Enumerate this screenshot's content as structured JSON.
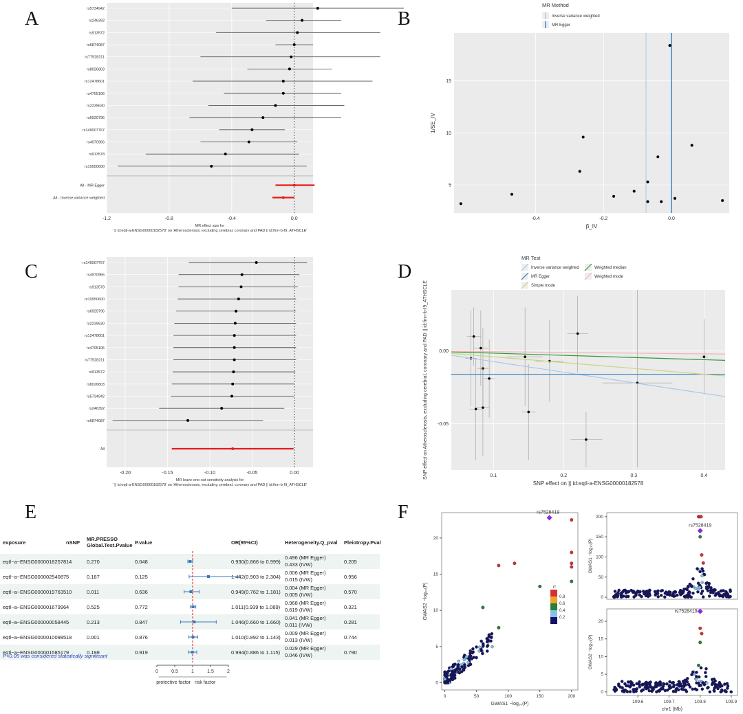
{
  "panels": {
    "a": "A",
    "b": "B",
    "c": "C",
    "d": "D",
    "e": "E",
    "f": "F"
  },
  "colors": {
    "panel_bg": "#ebebeb",
    "grid": "#ffffff",
    "point": "#000000",
    "ci_line": "#9a9a9a",
    "summary": "#e8191a",
    "ivw": "#a8c8e8",
    "egger": "#2f7fc1",
    "wmedian": "#2f9a3a",
    "smode": "#c9d67a",
    "wmode": "#f3b5b5",
    "forest_blue": "#3a78bf",
    "ref_red": "#e8191a",
    "ld_navy": "#141466",
    "ld_lblue": "#87c1e6",
    "ld_green": "#2a7f3a",
    "ld_orange": "#f2a030",
    "ld_red": "#d63030",
    "lead_purple": "#8a2be2"
  },
  "chart_data": [
    {
      "id": "A",
      "type": "forest",
      "xlabel": "MR effect size for\n' || id:eqtl-a-ENSG00000182578' on 'Atherosclerosis, excluding cerebral, coronary and PAD || id:finn-b-I9_ATHSCLE'",
      "xlim": [
        -1.2,
        0.12
      ],
      "xticks": [
        -1.2,
        -0.8,
        -0.4,
        0.0
      ],
      "xticklabels": [
        "-1.2",
        "-0.8",
        "-0.4",
        "0.0"
      ],
      "snps": [
        {
          "label": "rs5734942",
          "est": 0.15,
          "lo": -0.4,
          "hi": 0.7
        },
        {
          "label": "rs246392",
          "est": 0.05,
          "lo": -0.18,
          "hi": 0.3
        },
        {
          "label": "rs913572",
          "est": 0.02,
          "lo": -0.5,
          "hi": 0.55
        },
        {
          "label": "rs6874087",
          "est": 0.0,
          "lo": -0.12,
          "hi": 0.12
        },
        {
          "label": "rs77528211",
          "est": -0.02,
          "lo": -0.6,
          "hi": 0.55
        },
        {
          "label": "rs8026803",
          "est": -0.03,
          "lo": -0.3,
          "hi": 0.24
        },
        {
          "label": "rs12478601",
          "est": -0.07,
          "lo": -0.65,
          "hi": 0.5
        },
        {
          "label": "rs4705106",
          "est": -0.07,
          "lo": -0.45,
          "hi": 0.3
        },
        {
          "label": "rs2239630",
          "est": -0.12,
          "lo": -0.55,
          "hi": 0.32
        },
        {
          "label": "rs6929796",
          "est": -0.2,
          "lo": -0.67,
          "hi": 0.3
        },
        {
          "label": "rs149007767",
          "est": -0.27,
          "lo": -0.48,
          "hi": -0.06
        },
        {
          "label": "rs4970966",
          "est": -0.29,
          "lo": -0.6,
          "hi": 0.02
        },
        {
          "label": "rs913578",
          "est": -0.44,
          "lo": -0.95,
          "hi": 0.03
        },
        {
          "label": "rs10950600",
          "est": -0.53,
          "lo": -1.13,
          "hi": 0.08
        }
      ],
      "summary": [
        {
          "label": "All - MR Egger",
          "est": 0.0,
          "lo": -0.12,
          "hi": 0.13
        },
        {
          "label": "All - Inverse variance weighted",
          "est": -0.07,
          "lo": -0.14,
          "hi": 0.0
        }
      ]
    },
    {
      "id": "B",
      "type": "scatter",
      "legend_title": "MR Method",
      "legend": [
        "Inverse variance weighted",
        "MR Egger"
      ],
      "xlabel": "β_IV",
      "ylabel": "1/SE_IV",
      "xlim": [
        -0.64,
        0.17
      ],
      "ylim": [
        2.3,
        19.6
      ],
      "xticks": [
        -0.4,
        -0.2,
        0.0
      ],
      "xticklabels": [
        "-0.4",
        "-0.2",
        "0.0"
      ],
      "yticks": [
        5,
        10,
        15
      ],
      "yticklabels": [
        "5",
        "10",
        "15"
      ],
      "vlines": {
        "ivw": -0.075,
        "egger": 0.0
      },
      "x": [
        -0.62,
        -0.47,
        -0.26,
        -0.27,
        -0.17,
        -0.11,
        -0.07,
        -0.07,
        -0.04,
        -0.03,
        0.01,
        0.06,
        -0.005,
        0.15
      ],
      "y": [
        3.2,
        4.1,
        9.6,
        6.3,
        3.9,
        4.4,
        5.3,
        3.4,
        7.7,
        3.4,
        3.7,
        8.8,
        18.4,
        3.5
      ]
    },
    {
      "id": "C",
      "type": "forest",
      "xlabel": "MR leave-one-out sensitivity analysis for\n' || id:eqtl-a-ENSG00000182578' on 'Atherosclerosis, excluding cerebral, coronary and PAD || id:finn-b-I9_ATHSCLE'",
      "xlim": [
        -0.222,
        0.022
      ],
      "xticks": [
        -0.2,
        -0.15,
        -0.1,
        -0.05,
        0.0
      ],
      "xticklabels": [
        "-0.20",
        "-0.15",
        "-0.10",
        "-0.05",
        "0.00"
      ],
      "snps": [
        {
          "label": "rs149007767",
          "est": -0.045,
          "lo": -0.125,
          "hi": 0.015
        },
        {
          "label": "rs4970966",
          "est": -0.062,
          "lo": -0.137,
          "hi": 0.006
        },
        {
          "label": "rs913578",
          "est": -0.063,
          "lo": -0.137,
          "hi": 0.004
        },
        {
          "label": "rs10950600",
          "est": -0.066,
          "lo": -0.138,
          "hi": 0.002
        },
        {
          "label": "rs6929796",
          "est": -0.069,
          "lo": -0.14,
          "hi": 0.002
        },
        {
          "label": "rs2239630",
          "est": -0.07,
          "lo": -0.142,
          "hi": 0.002
        },
        {
          "label": "rs12478601",
          "est": -0.071,
          "lo": -0.143,
          "hi": 0.002
        },
        {
          "label": "rs4705106",
          "est": -0.071,
          "lo": -0.143,
          "hi": 0.002
        },
        {
          "label": "rs77528211",
          "est": -0.071,
          "lo": -0.143,
          "hi": 0.002
        },
        {
          "label": "rs913572",
          "est": -0.072,
          "lo": -0.144,
          "hi": 0.001
        },
        {
          "label": "rs8026803",
          "est": -0.073,
          "lo": -0.145,
          "hi": 0.0
        },
        {
          "label": "rs5734942",
          "est": -0.074,
          "lo": -0.146,
          "hi": -0.001
        },
        {
          "label": "rs246392",
          "est": -0.086,
          "lo": -0.16,
          "hi": -0.012
        },
        {
          "label": "rs6874087",
          "est": -0.126,
          "lo": -0.215,
          "hi": -0.037
        }
      ],
      "summary": [
        {
          "label": "All",
          "est": -0.073,
          "lo": -0.145,
          "hi": -0.001
        }
      ]
    },
    {
      "id": "D",
      "type": "scatter",
      "legend_title": "MR Test",
      "legend": [
        "Inverse variance weighted",
        "MR Egger",
        "Simple mode",
        "Weighted median",
        "Weighted mode"
      ],
      "xlabel": "SNP effect on  || id:eqtl-a-ENSG00000182578",
      "ylabel": "SNP effect on Atherosclerosis, excluding cerebral, coronary and PAD || id:finn-b-I9_ATHSCLE",
      "xlim": [
        0.04,
        0.43
      ],
      "ylim": [
        -0.082,
        0.042
      ],
      "xticks": [
        0.1,
        0.2,
        0.3,
        0.4
      ],
      "xticklabels": [
        "0.1",
        "0.2",
        "0.3",
        "0.4"
      ],
      "yticks": [
        -0.05,
        0.0
      ],
      "yticklabels": [
        "-0.05",
        "0.00"
      ],
      "points": [
        {
          "x": 0.072,
          "y": 0.01,
          "xlo": 0.062,
          "xhi": 0.082,
          "ylo": -0.01,
          "yhi": 0.03
        },
        {
          "x": 0.082,
          "y": 0.002,
          "xlo": 0.072,
          "xhi": 0.092,
          "ylo": -0.024,
          "yhi": 0.028
        },
        {
          "x": 0.068,
          "y": -0.005,
          "xlo": 0.06,
          "xhi": 0.076,
          "ylo": -0.038,
          "yhi": 0.028
        },
        {
          "x": 0.085,
          "y": -0.012,
          "xlo": 0.077,
          "xhi": 0.093,
          "ylo": -0.04,
          "yhi": 0.016
        },
        {
          "x": 0.094,
          "y": -0.019,
          "xlo": 0.086,
          "xhi": 0.102,
          "ylo": -0.046,
          "yhi": 0.008
        },
        {
          "x": 0.075,
          "y": -0.04,
          "xlo": 0.066,
          "xhi": 0.084,
          "ylo": -0.075,
          "yhi": -0.005
        },
        {
          "x": 0.085,
          "y": -0.039,
          "xlo": 0.076,
          "xhi": 0.094,
          "ylo": -0.072,
          "yhi": -0.006
        },
        {
          "x": 0.145,
          "y": -0.004,
          "xlo": 0.12,
          "xhi": 0.17,
          "ylo": -0.038,
          "yhi": 0.03
        },
        {
          "x": 0.15,
          "y": -0.042,
          "xlo": 0.14,
          "xhi": 0.16,
          "ylo": -0.075,
          "yhi": -0.009
        },
        {
          "x": 0.18,
          "y": -0.007,
          "xlo": 0.16,
          "xhi": 0.2,
          "ylo": -0.035,
          "yhi": 0.021
        },
        {
          "x": 0.22,
          "y": 0.012,
          "xlo": 0.205,
          "xhi": 0.235,
          "ylo": -0.015,
          "yhi": 0.038
        },
        {
          "x": 0.232,
          "y": -0.061,
          "xlo": 0.21,
          "xhi": 0.255,
          "ylo": -0.08,
          "yhi": -0.042
        },
        {
          "x": 0.305,
          "y": -0.022,
          "xlo": 0.255,
          "xhi": 0.355,
          "ylo": -0.08,
          "yhi": 0.042
        },
        {
          "x": 0.4,
          "y": -0.004,
          "xlo": 0.395,
          "xhi": 0.405,
          "ylo": -0.03,
          "yhi": 0.022
        }
      ],
      "lines": [
        {
          "test": "Inverse variance weighted",
          "intercept": 0.0,
          "slope": -0.073
        },
        {
          "test": "MR Egger",
          "intercept": -0.016,
          "slope": 0.0
        },
        {
          "test": "Simple mode",
          "intercept": 0.0,
          "slope": -0.04
        },
        {
          "test": "Weighted median",
          "intercept": 0.0,
          "slope": -0.015
        },
        {
          "test": "Weighted mode",
          "intercept": 0.0,
          "slope": -0.005
        }
      ]
    },
    {
      "id": "E",
      "type": "table",
      "columns": [
        "exposure",
        "nSNP",
        "MR.PRESSO\nGlobal.Test.Pvalue",
        "P.value",
        "",
        "OR(95%CI)",
        "Heterogeneity.Q_pval",
        "Pleiotropy.Pval"
      ],
      "rows": [
        {
          "exposure": "eqtl−a−ENSG00000182578",
          "nsnp": "14",
          "presso": "0.270",
          "p": "0.048",
          "or": 0.93,
          "lo": 0.866,
          "hi": 0.999,
          "ci": "0.930(0.866 to 0.999)",
          "het1": "0.496 (MR Egger)",
          "het2": "0.433 (IVW)",
          "pleio": "0.205"
        },
        {
          "exposure": "eqtl−a−ENSG00000254087",
          "nsnp": "5",
          "presso": "0.187",
          "p": "0.125",
          "or": 1.442,
          "lo": 0.903,
          "hi": 2.304,
          "ci": "1.442(0.903 to 2.304)",
          "het1": "0.006 (MR Egger)",
          "het2": "0.015 (IVW)",
          "pleio": "0.956"
        },
        {
          "exposure": "eqtl−a−ENSG00000197635",
          "nsnp": "10",
          "presso": "0.011",
          "p": "0.636",
          "or": 0.949,
          "lo": 0.762,
          "hi": 1.181,
          "ci": "0.949(0.762 to 1.181)",
          "het1": "0.004 (MR Egger)",
          "het2": "0.005 (IVW)",
          "pleio": "0.570"
        },
        {
          "exposure": "eqtl−a−ENSG00000167996",
          "nsnp": "4",
          "presso": "0.525",
          "p": "0.772",
          "or": 1.011,
          "lo": 0.939,
          "hi": 1.089,
          "ci": "1.011(0.939 to 1.089)",
          "het1": "0.968 (MR Egger)",
          "het2": "0.619 (IVW)",
          "pleio": "0.321"
        },
        {
          "exposure": "eqtl−a−ENSG00000005844",
          "nsnp": "5",
          "presso": "0.213",
          "p": "0.847",
          "or": 1.046,
          "lo": 0.66,
          "hi": 1.66,
          "ci": "1.046(0.660 to 1.660)",
          "het1": "0.041 (MR Egger)",
          "het2": "0.011 (IVW)",
          "pleio": "0.281"
        },
        {
          "exposure": "eqtl−a−ENSG00000100985",
          "nsnp": "18",
          "presso": "0.001",
          "p": "0.876",
          "or": 1.01,
          "lo": 0.892,
          "hi": 1.143,
          "ci": "1.010(0.892 to 1.143)",
          "het1": "0.009 (MR Egger)",
          "het2": "0.013 (IVW)",
          "pleio": "0.744"
        },
        {
          "exposure": "eqtl−a−ENSG00000158517",
          "nsnp": "9",
          "presso": "0.199",
          "p": "0.919",
          "or": 0.994,
          "lo": 0.886,
          "hi": 1.115,
          "ci": "0.994(0.886 to 1.115)",
          "het1": "0.029 (MR Egger)",
          "het2": "0.046 (IVW)",
          "pleio": "0.790"
        }
      ],
      "axis": {
        "min": 0,
        "max": 2,
        "ticks": [
          0,
          0.5,
          1,
          1.5,
          2
        ],
        "ticklabels": [
          "0",
          "0.5",
          "1",
          "1.5",
          "2"
        ],
        "left_label": "protective factor",
        "right_label": "risk factor"
      },
      "note": "P<0.05 was considered statistically significant"
    },
    {
      "id": "F",
      "type": "scatter",
      "lead_snp": "rs7528419",
      "scatter": {
        "xlabel": "GWAS1 −log₁₀(P)",
        "ylabel": "GWAS2 −log₁₀(P)",
        "xlim": [
          -5,
          210
        ],
        "ylim": [
          -1,
          23.5
        ],
        "xticks": [
          0,
          50,
          100,
          150,
          200
        ],
        "yticks": [
          0,
          5,
          10,
          15,
          20
        ]
      },
      "top_right": {
        "xlabel": "",
        "ylabel": "GWAS1 −log₁₀(P)",
        "ylim": [
          -5,
          210
        ],
        "yticks": [
          0,
          50,
          100,
          150,
          200
        ]
      },
      "bottom_right": {
        "xlabel": "chr1 (Mb)",
        "ylabel": "GWAS2 −log₁₀(P)",
        "xlim": [
          109.5,
          109.92
        ],
        "xticks": [
          109.6,
          109.7,
          109.8,
          109.9
        ],
        "xticklabels": [
          "109.6",
          "109.7",
          "109.8",
          "109.9"
        ],
        "ylim": [
          -1,
          23.5
        ],
        "yticks": [
          0,
          5,
          10,
          15,
          20
        ]
      },
      "ld_legend": {
        "title": "r²",
        "levels": [
          "0.8",
          "0.6",
          "0.4",
          "0.2"
        ]
      },
      "highlight_points": [
        {
          "x": 165,
          "y": 22.8,
          "r2": "lead"
        },
        {
          "x": 200,
          "y": 22.5,
          "r2": 0.9
        },
        {
          "x": 200,
          "y": 18,
          "r2": 0.9
        },
        {
          "x": 200,
          "y": 16.5,
          "r2": 0.9
        },
        {
          "x": 200,
          "y": 16,
          "r2": 0.9
        },
        {
          "x": 110,
          "y": 16.5,
          "r2": 0.9
        },
        {
          "x": 85,
          "y": 16.2,
          "r2": 0.9
        },
        {
          "x": 200,
          "y": 14,
          "r2": 0.5
        },
        {
          "x": 150,
          "y": 13.3,
          "r2": 0.5
        },
        {
          "x": 60,
          "y": 10.4,
          "r2": 0.5
        },
        {
          "x": 85,
          "y": 7.6,
          "r2": 0.5
        }
      ]
    }
  ]
}
